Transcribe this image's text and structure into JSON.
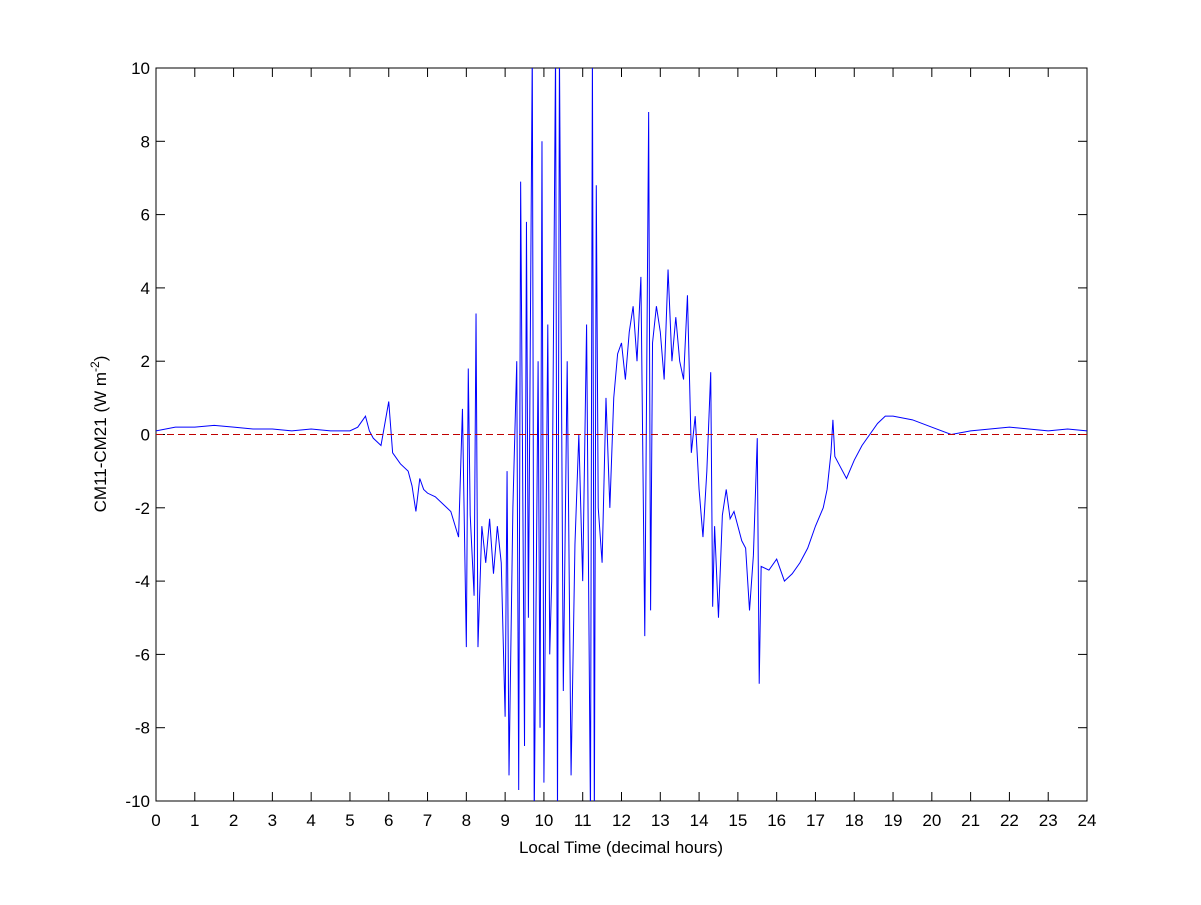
{
  "chart_data": {
    "type": "line",
    "xlabel": "Local Time (decimal hours)",
    "ylabel": "CM11-CM21 (W m",
    "ylabel_sup": "-2",
    "ylabel_end": ")",
    "xlim": [
      0,
      24
    ],
    "xticks": [
      0,
      1,
      2,
      3,
      4,
      5,
      6,
      7,
      8,
      9,
      10,
      11,
      12,
      13,
      14,
      15,
      16,
      17,
      18,
      19,
      20,
      21,
      22,
      23,
      24
    ],
    "ylim": [
      -10,
      10
    ],
    "yticks": [
      -10,
      -8,
      -6,
      -4,
      -2,
      0,
      2,
      4,
      6,
      8,
      10
    ],
    "reference_line": {
      "value": 0,
      "color": "#c00000",
      "style": "dashed"
    },
    "series": [
      {
        "color": "#0000ff",
        "x": [
          0,
          0.5,
          1,
          1.5,
          2,
          2.5,
          3,
          3.5,
          4,
          4.5,
          5,
          5.2,
          5.4,
          5.5,
          5.6,
          5.8,
          6.0,
          6.1,
          6.3,
          6.5,
          6.6,
          6.7,
          6.8,
          6.9,
          7.0,
          7.2,
          7.4,
          7.6,
          7.8,
          7.9,
          8.0,
          8.05,
          8.1,
          8.2,
          8.25,
          8.3,
          8.4,
          8.5,
          8.6,
          8.7,
          8.8,
          8.9,
          9.0,
          9.05,
          9.1,
          9.2,
          9.3,
          9.35,
          9.4,
          9.5,
          9.55,
          9.6,
          9.7,
          9.75,
          9.85,
          9.9,
          9.95,
          10.0,
          10.1,
          10.15,
          10.2,
          10.3,
          10.35,
          10.4,
          10.5,
          10.6,
          10.7,
          10.8,
          10.9,
          11.0,
          11.1,
          11.2,
          11.25,
          11.3,
          11.35,
          11.4,
          11.5,
          11.6,
          11.7,
          11.8,
          11.9,
          12.0,
          12.1,
          12.2,
          12.3,
          12.4,
          12.5,
          12.6,
          12.7,
          12.75,
          12.8,
          12.9,
          13.0,
          13.1,
          13.2,
          13.3,
          13.4,
          13.5,
          13.6,
          13.7,
          13.8,
          13.9,
          14.0,
          14.1,
          14.2,
          14.3,
          14.35,
          14.4,
          14.5,
          14.6,
          14.7,
          14.8,
          14.9,
          15.0,
          15.1,
          15.2,
          15.3,
          15.4,
          15.5,
          15.55,
          15.6,
          15.8,
          16.0,
          16.2,
          16.4,
          16.6,
          16.8,
          17.0,
          17.2,
          17.3,
          17.4,
          17.45,
          17.5,
          17.6,
          17.8,
          18.0,
          18.2,
          18.4,
          18.6,
          18.8,
          19.0,
          19.5,
          20.0,
          20.5,
          21,
          21.5,
          22,
          22.5,
          23,
          23.5,
          24
        ],
        "values": [
          0.1,
          0.2,
          0.2,
          0.25,
          0.2,
          0.15,
          0.15,
          0.1,
          0.15,
          0.1,
          0.1,
          0.2,
          0.5,
          0.1,
          -0.1,
          -0.3,
          0.9,
          -0.5,
          -0.8,
          -1.0,
          -1.4,
          -2.1,
          -1.2,
          -1.5,
          -1.6,
          -1.7,
          -1.9,
          -2.1,
          -2.8,
          0.7,
          -5.8,
          1.8,
          -2.2,
          -4.4,
          3.3,
          -5.8,
          -2.5,
          -3.5,
          -2.3,
          -3.8,
          -2.5,
          -3.5,
          -7.7,
          -1,
          -9.3,
          -2,
          2,
          -9.7,
          6.9,
          -8.5,
          5.8,
          -5,
          10.5,
          -10.5,
          2,
          -8,
          8,
          -9.5,
          3,
          -6,
          -4,
          10.5,
          -10.5,
          10.5,
          -7,
          2,
          -9.3,
          -3,
          0,
          -4,
          3,
          -10.5,
          10.5,
          -10.5,
          6.8,
          -2,
          -3.5,
          1,
          -2,
          1,
          2.2,
          2.5,
          1.5,
          2.8,
          3.5,
          2,
          4.3,
          -5.5,
          8.8,
          -4.8,
          2.5,
          3.5,
          2.8,
          1.5,
          4.5,
          2,
          3.2,
          2,
          1.5,
          3.8,
          -0.5,
          0.5,
          -1.5,
          -2.8,
          -1,
          1.7,
          -4.7,
          -2.5,
          -5,
          -2.2,
          -1.5,
          -2.3,
          -2.1,
          -2.5,
          -2.9,
          -3.1,
          -4.8,
          -3.3,
          -0.1,
          -6.8,
          -3.6,
          -3.7,
          -3.4,
          -4,
          -3.8,
          -3.5,
          -3.1,
          -2.5,
          -2.0,
          -1.5,
          -0.5,
          0.4,
          -0.6,
          -0.8,
          -1.2,
          -0.7,
          -0.3,
          0.0,
          0.3,
          0.5,
          0.5,
          0.4,
          0.2,
          0.0,
          0.1,
          0.15,
          0.2,
          0.15,
          0.1,
          0.15,
          0.1
        ]
      }
    ]
  }
}
